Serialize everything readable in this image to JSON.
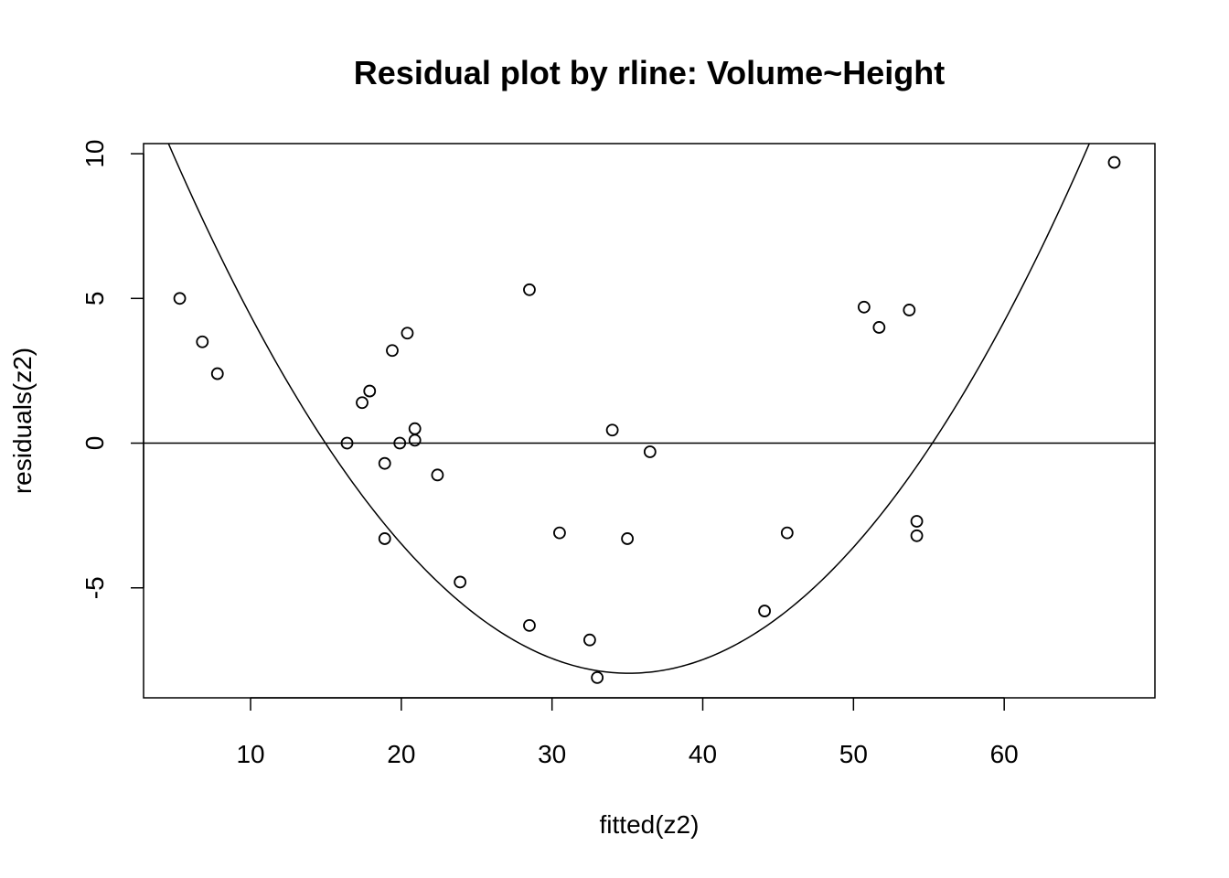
{
  "chart_data": {
    "type": "scatter",
    "title": "Residual plot by rline: Volume~Height",
    "xlabel": "fitted(z2)",
    "ylabel": "residuals(z2)",
    "xlim": [
      2.9,
      70
    ],
    "ylim": [
      -8.8,
      10.35
    ],
    "xticks": [
      10,
      20,
      30,
      40,
      50,
      60
    ],
    "yticks": [
      -5,
      0,
      5,
      10
    ],
    "grid": false,
    "points": [
      {
        "x": 5.3,
        "y": 5.0
      },
      {
        "x": 6.8,
        "y": 3.5
      },
      {
        "x": 7.8,
        "y": 2.4
      },
      {
        "x": 16.4,
        "y": 0.0
      },
      {
        "x": 17.4,
        "y": 1.4
      },
      {
        "x": 17.9,
        "y": 1.8
      },
      {
        "x": 18.9,
        "y": -0.7
      },
      {
        "x": 18.9,
        "y": -3.3
      },
      {
        "x": 19.4,
        "y": 3.2
      },
      {
        "x": 19.9,
        "y": 0.0
      },
      {
        "x": 20.4,
        "y": 3.8
      },
      {
        "x": 20.9,
        "y": 0.5
      },
      {
        "x": 20.9,
        "y": 0.1
      },
      {
        "x": 22.4,
        "y": -1.1
      },
      {
        "x": 23.9,
        "y": -4.8
      },
      {
        "x": 28.5,
        "y": 5.3
      },
      {
        "x": 28.5,
        "y": -6.3
      },
      {
        "x": 30.5,
        "y": -3.1
      },
      {
        "x": 32.5,
        "y": -6.8
      },
      {
        "x": 33.0,
        "y": -8.1
      },
      {
        "x": 34.0,
        "y": 0.45
      },
      {
        "x": 35.0,
        "y": -3.3
      },
      {
        "x": 36.5,
        "y": -0.3
      },
      {
        "x": 44.1,
        "y": -5.8
      },
      {
        "x": 45.6,
        "y": -3.1
      },
      {
        "x": 50.7,
        "y": 4.7
      },
      {
        "x": 51.7,
        "y": 4.0
      },
      {
        "x": 53.7,
        "y": 4.6
      },
      {
        "x": 54.2,
        "y": -2.7
      },
      {
        "x": 54.2,
        "y": -3.2
      },
      {
        "x": 67.3,
        "y": 9.7
      }
    ],
    "reference_line": {
      "y": 0
    },
    "curve": {
      "type": "parabola",
      "vertex_x": 35.1,
      "vertex_y": -7.95,
      "a": 0.01961
    }
  }
}
